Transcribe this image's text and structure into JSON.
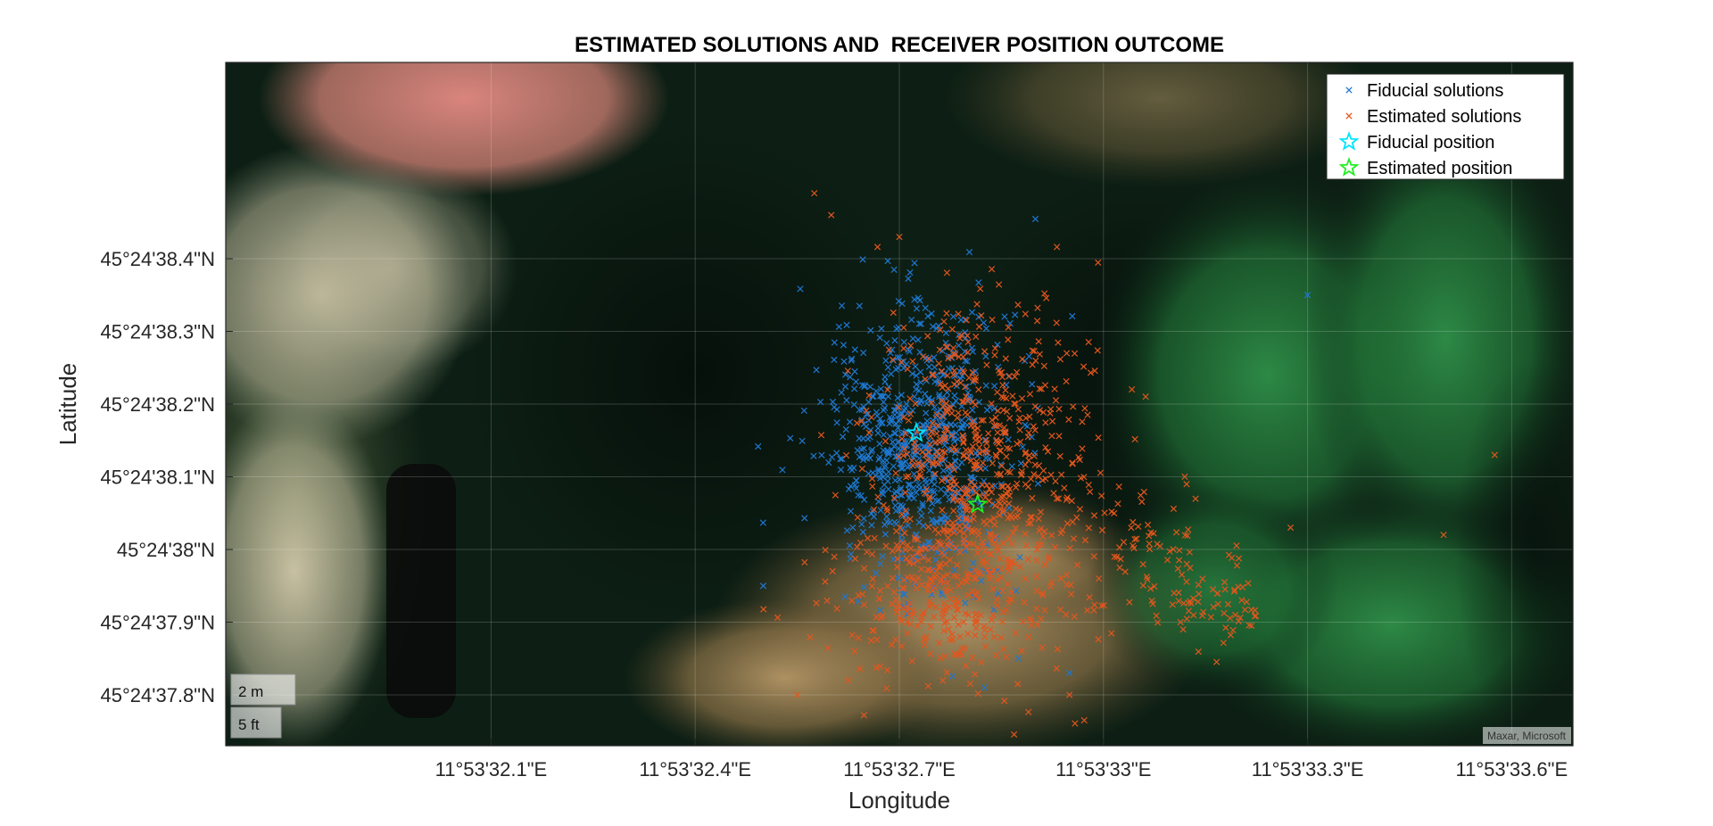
{
  "chart_data": {
    "type": "scatter",
    "title": "ESTIMATED SOLUTIONS AND  RECEIVER POSITION OUTCOME",
    "xlabel": "Longitude",
    "ylabel": "Latitude",
    "xlim": [
      -0.18,
      3.78
    ],
    "ylim": [
      -0.07,
      0.87
    ],
    "x_ticks": [
      {
        "value": 0.6,
        "label": "11°53'32.1\"E"
      },
      {
        "value": 1.2,
        "label": "11°53'32.4\"E"
      },
      {
        "value": 1.8,
        "label": "11°53'32.7\"E"
      },
      {
        "value": 2.4,
        "label": "11°53'33\"E"
      },
      {
        "value": 3.0,
        "label": "11°53'33.3\"E"
      },
      {
        "value": 3.6,
        "label": "11°53'33.6\"E"
      }
    ],
    "y_ticks": [
      {
        "value": 0.0,
        "label": "45°24'37.8\"N"
      },
      {
        "value": 0.1,
        "label": "45°24'37.9\"N"
      },
      {
        "value": 0.2,
        "label": "45°24'38\"N"
      },
      {
        "value": 0.3,
        "label": "45°24'38.1\"N"
      },
      {
        "value": 0.4,
        "label": "45°24'38.2\"N"
      },
      {
        "value": 0.5,
        "label": "45°24'38.3\"N"
      },
      {
        "value": 0.6,
        "label": "45°24'38.4\"N"
      }
    ],
    "grid": true,
    "legend_position": "top-right",
    "series": [
      {
        "name": "Fiducial solutions",
        "marker": "x",
        "color": "#1f77d0",
        "clusters": [
          {
            "cx": 1.87,
            "cy": 0.35,
            "sx": 0.14,
            "sy": 0.09,
            "n": 650
          },
          {
            "cx": 1.82,
            "cy": 0.22,
            "sx": 0.1,
            "sy": 0.06,
            "n": 60
          }
        ],
        "outliers": [
          [
            3.0,
            0.55
          ],
          [
            2.3,
            0.03
          ],
          [
            2.15,
            0.05
          ],
          [
            2.05,
            0.01
          ],
          [
            1.4,
            0.15
          ]
        ]
      },
      {
        "name": "Estimated solutions",
        "marker": "x",
        "color": "#e2561d",
        "clusters": [
          {
            "cx": 2.05,
            "cy": 0.32,
            "sx": 0.16,
            "sy": 0.11,
            "n": 620
          },
          {
            "cx": 1.92,
            "cy": 0.14,
            "sx": 0.17,
            "sy": 0.06,
            "n": 260
          },
          {
            "cx": 2.55,
            "cy": 0.18,
            "sx": 0.13,
            "sy": 0.05,
            "n": 90
          },
          {
            "cx": 2.75,
            "cy": 0.12,
            "sx": 0.06,
            "sy": 0.03,
            "n": 40
          }
        ],
        "outliers": [
          [
            1.6,
            0.66
          ],
          [
            1.8,
            0.63
          ],
          [
            1.55,
            0.69
          ],
          [
            3.55,
            0.33
          ],
          [
            3.4,
            0.22
          ],
          [
            2.95,
            0.23
          ],
          [
            1.65,
            0.02
          ],
          [
            1.5,
            0.0
          ],
          [
            2.3,
            0.0
          ]
        ]
      },
      {
        "name": "Fiducial position",
        "marker": "star",
        "color": "#00e5ff",
        "points": [
          [
            1.85,
            0.36
          ]
        ]
      },
      {
        "name": "Estimated position",
        "marker": "star",
        "color": "#22ee22",
        "points": [
          [
            2.03,
            0.262
          ]
        ]
      }
    ],
    "scale_bar": {
      "metric": "2 m",
      "imperial": "5 ft"
    },
    "attribution": "Maxar, Microsoft"
  }
}
